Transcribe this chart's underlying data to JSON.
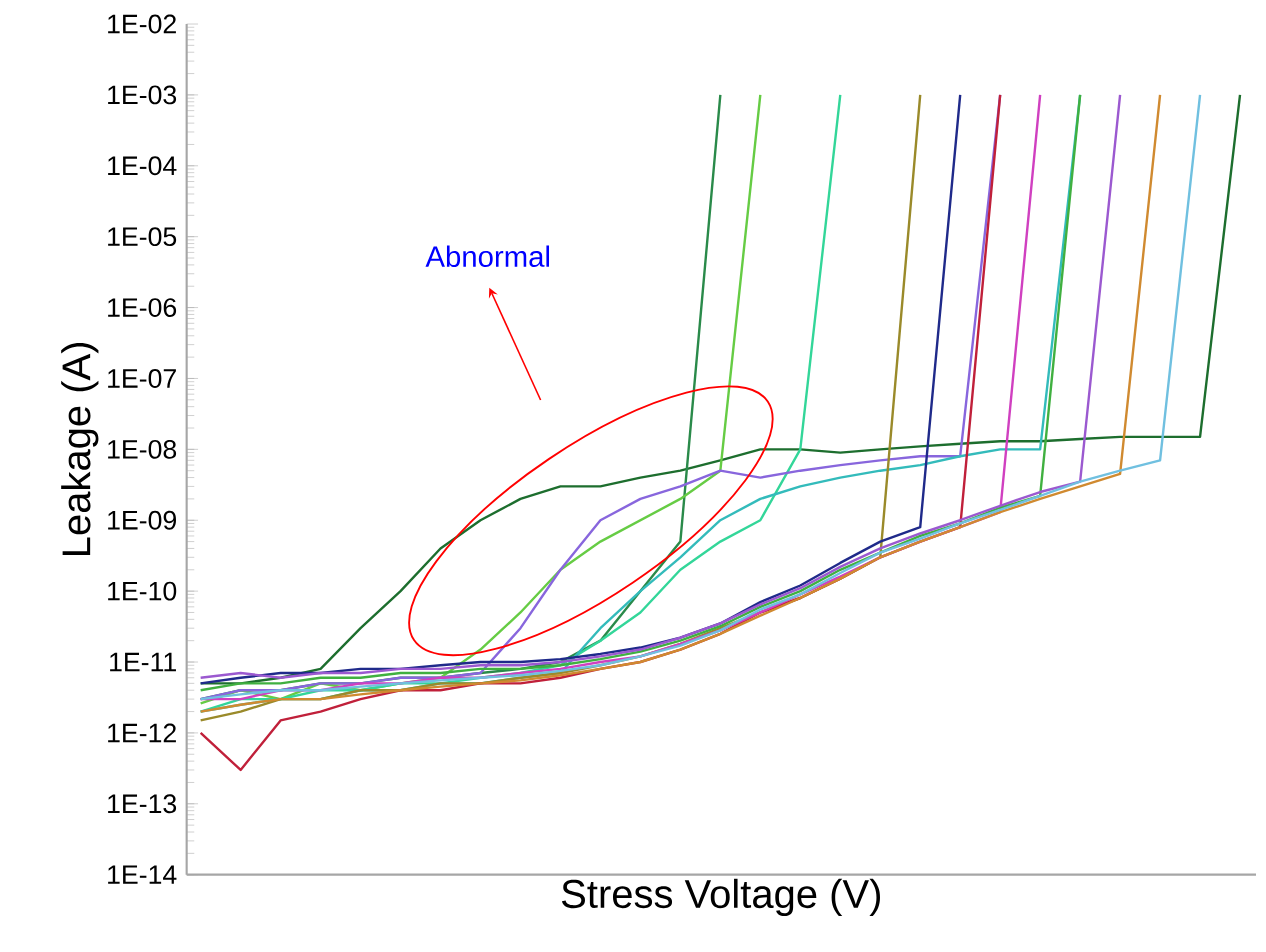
{
  "chart_data": {
    "type": "line",
    "xlabel": "Stress Voltage (V)",
    "ylabel": "Leakage (A)",
    "log": "y",
    "ylim": [
      1e-14,
      0.01
    ],
    "yticks": [
      {
        "value": 1e-14,
        "label": "1E-14"
      },
      {
        "value": 1e-13,
        "label": "1E-13"
      },
      {
        "value": 1e-12,
        "label": "1E-12"
      },
      {
        "value": 1e-11,
        "label": "1E-11"
      },
      {
        "value": 1e-10,
        "label": "1E-10"
      },
      {
        "value": 1e-09,
        "label": "1E-09"
      },
      {
        "value": 1e-08,
        "label": "1E-08"
      },
      {
        "value": 1e-07,
        "label": "1E-07"
      },
      {
        "value": 1e-06,
        "label": "1E-06"
      },
      {
        "value": 1e-05,
        "label": "1E-05"
      },
      {
        "value": 0.0001,
        "label": "1E-04"
      },
      {
        "value": 0.001,
        "label": "1E-03"
      },
      {
        "value": 0.01,
        "label": "1E-02"
      }
    ],
    "categories": [
      null,
      null,
      null,
      null,
      null,
      null,
      null,
      null,
      null,
      null,
      null,
      null,
      null,
      null,
      null,
      null,
      null,
      null,
      null,
      null,
      null,
      null,
      null,
      null,
      null,
      null,
      null
    ],
    "annotations": [
      "Abnormal"
    ],
    "series": [
      {
        "color": "#1d6e2e",
        "values": [
          5e-12,
          5e-12,
          6e-12,
          8e-12,
          3e-11,
          1e-10,
          4e-10,
          1e-09,
          2e-09,
          3e-09,
          3e-09,
          4e-09,
          5e-09,
          7e-09,
          1e-08,
          1e-08,
          9e-09,
          1e-08,
          1.1e-08,
          1.2e-08,
          1.3e-08,
          1.3e-08,
          1.4e-08,
          1.5e-08,
          1.5e-08,
          1.5e-08,
          0.001
        ]
      },
      {
        "color": "#2a8a4a",
        "values": [
          3e-12,
          4e-12,
          4e-12,
          5e-12,
          5e-12,
          6e-12,
          6e-12,
          7e-12,
          8e-12,
          1e-11,
          2e-11,
          1e-10,
          5e-10,
          0.001,
          null,
          null,
          null,
          null,
          null,
          null,
          null,
          null,
          null,
          null,
          null,
          null,
          null
        ]
      },
      {
        "color": "#66cc44",
        "values": [
          2.6e-12,
          4e-12,
          3e-12,
          5e-12,
          4e-12,
          5e-12,
          6e-12,
          1.5e-11,
          5e-11,
          2e-10,
          5e-10,
          1e-09,
          2e-09,
          5e-09,
          0.001,
          null,
          null,
          null,
          null,
          null,
          null,
          null,
          null,
          null,
          null,
          null,
          null
        ]
      },
      {
        "color": "#33d699",
        "values": [
          2e-12,
          3e-12,
          3e-12,
          4e-12,
          4e-12,
          5e-12,
          5e-12,
          6e-12,
          7e-12,
          9e-12,
          2e-11,
          5e-11,
          2e-10,
          5e-10,
          1e-09,
          1e-08,
          0.001,
          null,
          null,
          null,
          null,
          null,
          null,
          null,
          null,
          null,
          null
        ]
      },
      {
        "color": "#8866dd",
        "values": [
          3e-12,
          4e-12,
          4e-12,
          5e-12,
          5e-12,
          6e-12,
          6e-12,
          7e-12,
          3e-11,
          2e-10,
          1e-09,
          2e-09,
          3e-09,
          5e-09,
          4e-09,
          5e-09,
          6e-09,
          7e-09,
          8e-09,
          8e-09,
          0.001,
          null,
          null,
          null,
          null,
          null,
          null
        ]
      },
      {
        "color": "#33bbbb",
        "values": [
          2e-12,
          2.5e-12,
          3e-12,
          3e-12,
          4e-12,
          4e-12,
          5e-12,
          5e-12,
          6e-12,
          7e-12,
          3e-11,
          1e-10,
          3e-10,
          1e-09,
          2e-09,
          3e-09,
          4e-09,
          5e-09,
          6e-09,
          8e-09,
          1e-08,
          1e-08,
          0.001,
          null,
          null,
          null,
          null
        ]
      },
      {
        "color": "#9a8a2a",
        "values": [
          1.5e-12,
          2e-12,
          3e-12,
          3e-12,
          4e-12,
          4e-12,
          5e-12,
          5e-12,
          6e-12,
          7e-12,
          9e-12,
          1.2e-11,
          1.8e-11,
          3e-11,
          5e-11,
          8e-11,
          1.5e-10,
          3e-10,
          0.001,
          null,
          null,
          null,
          null,
          null,
          null,
          null,
          null
        ]
      },
      {
        "color": "#1f2a8a",
        "values": [
          5e-12,
          6e-12,
          7e-12,
          7e-12,
          8e-12,
          8e-12,
          9e-12,
          1e-11,
          1e-11,
          1.1e-11,
          1.3e-11,
          1.6e-11,
          2.2e-11,
          3.5e-11,
          7e-11,
          1.2e-10,
          2.5e-10,
          5e-10,
          8e-10,
          0.001,
          null,
          null,
          null,
          null,
          null,
          null,
          null
        ]
      },
      {
        "color": "#c0203a",
        "values": [
          1e-12,
          3e-13,
          1.5e-12,
          2e-12,
          3e-12,
          4e-12,
          4e-12,
          5e-12,
          5e-12,
          6e-12,
          8e-12,
          1e-11,
          1.5e-11,
          2.5e-11,
          5e-11,
          8e-11,
          1.5e-10,
          3e-10,
          5e-10,
          8e-10,
          0.001,
          null,
          null,
          null,
          null,
          null,
          null
        ]
      },
      {
        "color": "#d040c0",
        "values": [
          3e-12,
          3e-12,
          4e-12,
          4e-12,
          5e-12,
          5e-12,
          6e-12,
          6e-12,
          7e-12,
          8e-12,
          1e-11,
          1.2e-11,
          1.8e-11,
          2.8e-11,
          5e-11,
          9e-11,
          1.6e-10,
          3e-10,
          5e-10,
          8e-10,
          1.3e-09,
          0.001,
          null,
          null,
          null,
          null,
          null
        ]
      },
      {
        "color": "#40b040",
        "values": [
          4e-12,
          5e-12,
          5e-12,
          6e-12,
          6e-12,
          7e-12,
          7e-12,
          8e-12,
          8e-12,
          9e-12,
          1.1e-11,
          1.4e-11,
          2e-11,
          3.2e-11,
          6e-11,
          1e-10,
          2e-10,
          3.5e-10,
          6e-10,
          9e-10,
          1.5e-09,
          2.2e-09,
          0.001,
          null,
          null,
          null,
          null
        ]
      },
      {
        "color": "#9b59d0",
        "values": [
          6e-12,
          7e-12,
          6e-12,
          7e-12,
          7e-12,
          8e-12,
          8e-12,
          9e-12,
          9e-12,
          1e-11,
          1.2e-11,
          1.5e-11,
          2.2e-11,
          3.5e-11,
          6.5e-11,
          1.1e-10,
          2.2e-10,
          4e-10,
          6.5e-10,
          1e-09,
          1.6e-09,
          2.5e-09,
          3.5e-09,
          0.001,
          null,
          null,
          null
        ]
      },
      {
        "color": "#d08a30",
        "values": [
          2e-12,
          2.5e-12,
          3e-12,
          3e-12,
          3.5e-12,
          4e-12,
          4.5e-12,
          5e-12,
          5.5e-12,
          6.5e-12,
          8e-12,
          1e-11,
          1.5e-11,
          2.5e-11,
          4.5e-11,
          8e-11,
          1.5e-10,
          3e-10,
          5e-10,
          8e-10,
          1.3e-09,
          2e-09,
          3e-09,
          4.5e-09,
          0.001,
          null,
          null
        ]
      },
      {
        "color": "#70c0e0",
        "values": [
          3e-12,
          3.5e-12,
          4e-12,
          4e-12,
          4.5e-12,
          5e-12,
          5.5e-12,
          6e-12,
          6.5e-12,
          7.5e-12,
          9e-12,
          1.2e-11,
          1.7e-11,
          2.8e-11,
          5.5e-11,
          9e-11,
          1.8e-10,
          3.5e-10,
          5.5e-10,
          9e-10,
          1.4e-09,
          2.2e-09,
          3.5e-09,
          5e-09,
          7e-09,
          0.001,
          null
        ]
      }
    ]
  }
}
